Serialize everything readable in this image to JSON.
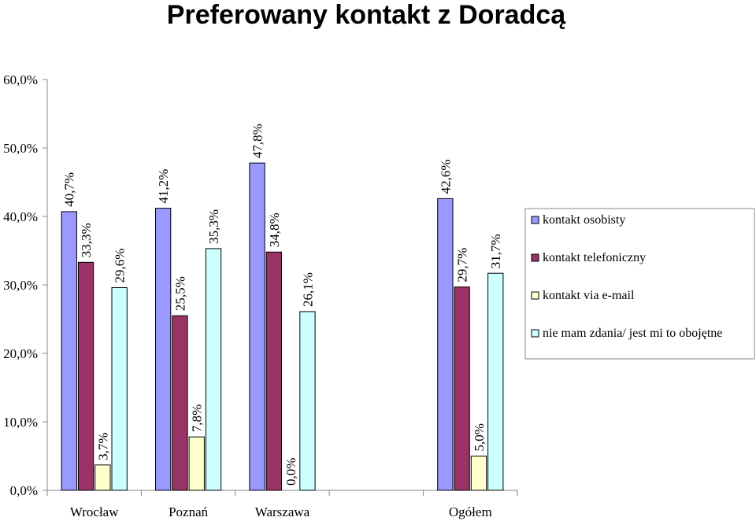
{
  "chart_data": {
    "type": "bar",
    "title": "Preferowany kontakt z Doradcą",
    "categories": [
      "Wrocław",
      "Poznań",
      "Warszawa",
      "",
      "Ogółem"
    ],
    "series": [
      {
        "name": "kontakt osobisty",
        "color": "#9999ff",
        "values": [
          40.7,
          41.2,
          47.8,
          null,
          42.6
        ],
        "labels": [
          "40,7%",
          "41,2%",
          "47,8%",
          "",
          "42,6%"
        ]
      },
      {
        "name": "kontakt telefoniczny",
        "color": "#993366",
        "values": [
          33.3,
          25.5,
          34.8,
          null,
          29.7
        ],
        "labels": [
          "33,3%",
          "25,5%",
          "34,8%",
          "",
          "29,7%"
        ]
      },
      {
        "name": "kontakt via e-mail",
        "color": "#ffffcc",
        "values": [
          3.7,
          7.8,
          0.0,
          null,
          5.0
        ],
        "labels": [
          "3,7%",
          "7,8%",
          "0,0%",
          "",
          "5,0%"
        ]
      },
      {
        "name": "nie mam zdania/ jest mi to obojętne",
        "color": "#ccffff",
        "values": [
          29.6,
          35.3,
          26.1,
          null,
          31.7
        ],
        "labels": [
          "29,6%",
          "35,3%",
          "26,1%",
          "",
          "31,7%"
        ]
      }
    ],
    "ylim": [
      0,
      60
    ],
    "yticks": [
      {
        "value": 0,
        "label": "0,0%"
      },
      {
        "value": 10,
        "label": "10,0%"
      },
      {
        "value": 20,
        "label": "20,0%"
      },
      {
        "value": 30,
        "label": "30,0%"
      },
      {
        "value": 40,
        "label": "40,0%"
      },
      {
        "value": 50,
        "label": "50,0%"
      },
      {
        "value": 60,
        "label": "60,0%"
      }
    ],
    "grid": false,
    "legend_position": "right",
    "xlabel": "",
    "ylabel": ""
  }
}
